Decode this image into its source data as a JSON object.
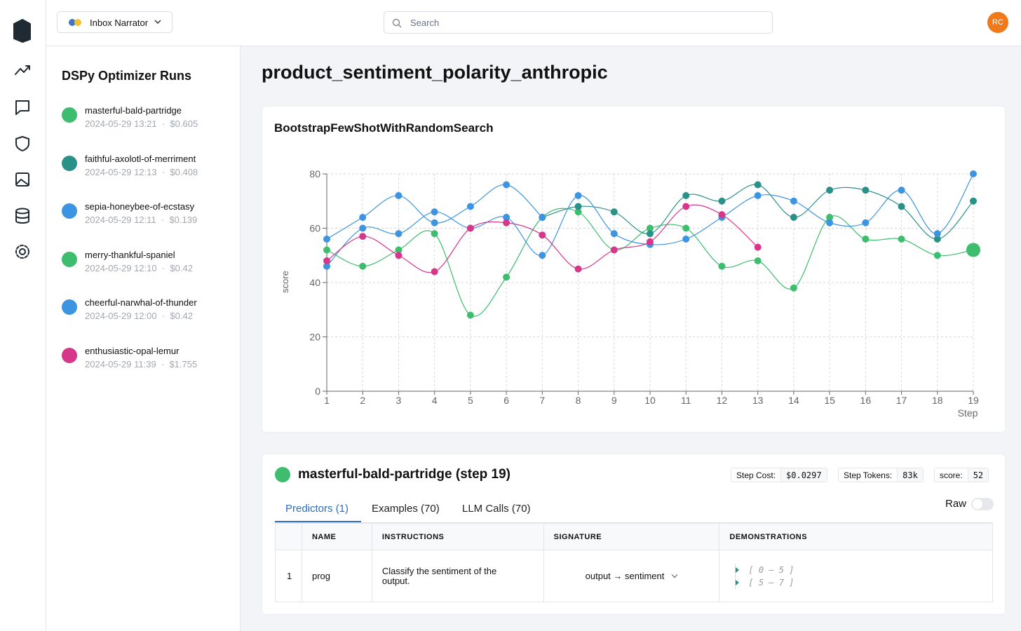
{
  "header": {
    "app": "Inbox Narrator",
    "search": "Search",
    "avatar": "RC"
  },
  "sidebar": {
    "title": "DSPy Optimizer Runs",
    "runs": [
      {
        "name": "masterful-bald-partridge",
        "meta": "2024-05-29 13:21  ·  $0.605",
        "color": "#3ebd6e"
      },
      {
        "name": "faithful-axolotl-of-merriment",
        "meta": "2024-05-29 12:13  ·  $0.408",
        "color": "#2a9189"
      },
      {
        "name": "sepia-honeybee-of-ecstasy",
        "meta": "2024-05-29 12:11  ·  $0.139",
        "color": "#3d94e0"
      },
      {
        "name": "merry-thankful-spaniel",
        "meta": "2024-05-29 12:10  ·  $0.42",
        "color": "#3ebd6e"
      },
      {
        "name": "cheerful-narwhal-of-thunder",
        "meta": "2024-05-29 12:00  ·  $0.42",
        "color": "#3d94e0"
      },
      {
        "name": "enthusiastic-opal-lemur",
        "meta": "2024-05-29 11:39  ·  $1.755",
        "color": "#d6378a"
      }
    ]
  },
  "page_title": "product_sentiment_polarity_anthropic",
  "chart_data": {
    "type": "line",
    "title": "BootstrapFewShotWithRandomSearch",
    "x_label": "Step",
    "y_label": "score",
    "x": [
      1,
      2,
      3,
      4,
      5,
      6,
      7,
      8,
      9,
      10,
      11,
      12,
      13,
      14,
      15,
      16,
      17,
      18,
      19
    ],
    "xlim": [
      1,
      19
    ],
    "xticks": [
      1,
      2,
      3,
      4,
      5,
      6,
      7,
      8,
      9,
      10,
      11,
      12,
      13,
      14,
      15,
      16,
      17,
      18,
      19
    ],
    "ylim": [
      0,
      80
    ],
    "yticks": [
      0,
      20,
      40,
      60,
      80
    ],
    "grid": true,
    "series": [
      {
        "color": "#3ebd6e",
        "values": [
          52,
          46,
          52,
          58,
          28,
          42,
          64,
          66,
          52,
          60,
          60,
          46,
          48,
          38,
          64,
          56,
          56,
          50,
          52
        ]
      },
      {
        "color": "#2a9189",
        "values": [
          null,
          null,
          null,
          null,
          null,
          null,
          64,
          68,
          66,
          58,
          72,
          70,
          76,
          64,
          74,
          74,
          68,
          56,
          70
        ]
      },
      {
        "color": "#3d94e0",
        "values": [
          56,
          64,
          72,
          62,
          68,
          76,
          64,
          null,
          null,
          null,
          null,
          null,
          null,
          null,
          null,
          null,
          null,
          null,
          null
        ]
      },
      {
        "color": "#3d94e0",
        "values": [
          46,
          60,
          58,
          66,
          60,
          64,
          50,
          72,
          58,
          54,
          56,
          64,
          72,
          70,
          62,
          62,
          74,
          58,
          80
        ]
      },
      {
        "color": "#d6378a",
        "values": [
          48,
          57,
          50,
          44,
          60,
          62,
          57.5,
          45,
          52,
          55,
          68,
          65,
          53,
          null,
          null,
          null,
          null,
          null,
          null
        ]
      }
    ]
  },
  "detail": {
    "title": "masterful-bald-partridge (step 19)",
    "color": "#3ebd6e",
    "stats": [
      {
        "label": "Step Cost:",
        "value": "$0.0297"
      },
      {
        "label": "Step Tokens:",
        "value": "83k"
      },
      {
        "label": "score:",
        "value": "52"
      }
    ],
    "tabs": [
      "Predictors (1)",
      "Examples (70)",
      "LLM Calls (70)"
    ],
    "raw": "Raw",
    "table": {
      "headers": [
        "NAME",
        "INSTRUCTIONS",
        "SIGNATURE",
        "DEMONSTRATIONS"
      ],
      "rows": [
        {
          "index": "1",
          "name": "prog",
          "instructions": "Classify the sentiment of the output.",
          "signature": "output → sentiment",
          "demonstrations": [
            "[ 0 – 5 ]",
            "[ 5 – 7 ]"
          ]
        }
      ]
    }
  }
}
